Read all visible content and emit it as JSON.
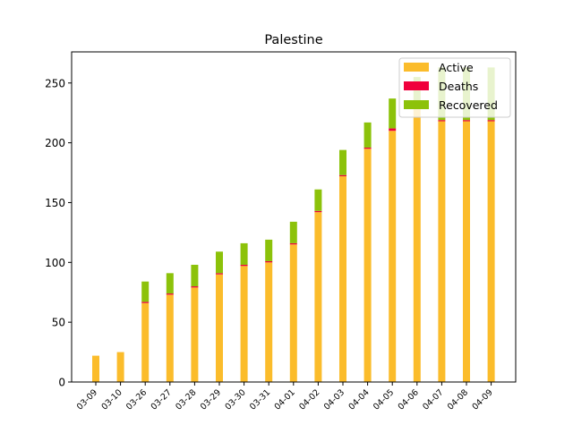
{
  "chart_data": {
    "type": "bar",
    "stacked": true,
    "title": "Palestine",
    "xlabel": "",
    "ylabel": "",
    "categories": [
      "03-09",
      "03-10",
      "03-26",
      "03-27",
      "03-28",
      "03-29",
      "03-30",
      "03-31",
      "04-01",
      "04-02",
      "04-03",
      "04-04",
      "04-05",
      "04-06",
      "04-07",
      "04-08",
      "04-09"
    ],
    "series": [
      {
        "name": "Active",
        "color": "#fbbc2b",
        "values": [
          22,
          25,
          66,
          73,
          79,
          90,
          97,
          100,
          115,
          142,
          172,
          195,
          210,
          233,
          218,
          218,
          218
        ]
      },
      {
        "name": "Deaths",
        "color": "#f0003c",
        "values": [
          0,
          0,
          1,
          1,
          1,
          1,
          1,
          1,
          1,
          1,
          1,
          1,
          2,
          1,
          1,
          1,
          1
        ]
      },
      {
        "name": "Recovered",
        "color": "#8cc20a",
        "values": [
          0,
          0,
          17,
          17,
          18,
          18,
          18,
          18,
          18,
          18,
          21,
          21,
          25,
          21,
          44,
          44,
          44
        ]
      }
    ],
    "ylim": [
      0,
      276
    ],
    "yticks": [
      0,
      50,
      100,
      150,
      200,
      250
    ],
    "grid": false,
    "legend_position": "top-right"
  }
}
